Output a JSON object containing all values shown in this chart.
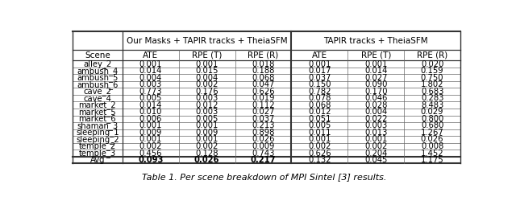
{
  "caption": "Table 1. Per scene breakdown of MPI Sintel [3] results.",
  "col_group_labels": [
    "Our Masks + TAPIR tracks + TheiaSFM",
    "TAPIR tracks + TheiaSFM"
  ],
  "sub_headers": [
    "ATE",
    "RPE (T)",
    "RPE (R)",
    "ATE",
    "RPE (T)",
    "RPE (R)"
  ],
  "row_header": "Scene",
  "rows": [
    [
      "alley_2",
      "0.001",
      "0.001",
      "0.018",
      "0.001",
      "0.001",
      "0.020"
    ],
    [
      "ambush_4",
      "0.014",
      "0.015",
      "0.188",
      "0.017",
      "0.014",
      "0.159"
    ],
    [
      "ambush_5",
      "0.004",
      "0.004",
      "0.068",
      "0.037",
      "0.027",
      "0.750"
    ],
    [
      "ambush_6",
      "0.003",
      "0.002",
      "0.047",
      "0.150",
      "0.090",
      "1.802"
    ],
    [
      "cave_2",
      "0.773",
      "0.176",
      "0.626",
      "0.782",
      "0.170",
      "0.683"
    ],
    [
      "cave_4",
      "0.005",
      "0.003",
      "0.019",
      "0.078",
      "0.046",
      "0.283"
    ],
    [
      "market_2",
      "0.014",
      "0.012",
      "0.112",
      "0.068",
      "0.028",
      "8.483"
    ],
    [
      "market_5",
      "0.010",
      "0.003",
      "0.027",
      "0.012",
      "0.004",
      "0.029"
    ],
    [
      "market_6",
      "0.006",
      "0.005",
      "0.037",
      "0.051",
      "0.022",
      "0.800"
    ],
    [
      "shaman_3",
      "0.001",
      "0.001",
      "0.213",
      "0.005",
      "0.003",
      "0.680"
    ],
    [
      "sleeping_1",
      "0.009",
      "0.009",
      "0.898",
      "0.011",
      "0.013",
      "1.267"
    ],
    [
      "sleeping_2",
      "0.001",
      "0.001",
      "0.026",
      "0.001",
      "0.001",
      "0.026"
    ],
    [
      "temple_2",
      "0.002",
      "0.002",
      "0.009",
      "0.002",
      "0.002",
      "0.008"
    ],
    [
      "temple_3",
      "0.456",
      "0.128",
      "0.743",
      "0.626",
      "0.204",
      "1.452"
    ]
  ],
  "avg_row": [
    "Avg",
    "0.093",
    "0.026",
    "0.217",
    "0.132",
    "0.045",
    "1.175"
  ],
  "avg_bold": [
    false,
    true,
    true,
    true,
    false,
    false,
    false
  ],
  "bg_color": "#ffffff",
  "text_color": "#000000",
  "font_size": 7.2,
  "header_font_size": 7.5,
  "caption_font_size": 8.0
}
